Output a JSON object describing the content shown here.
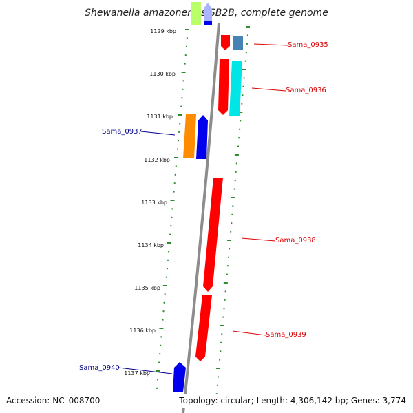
{
  "title": "Shewanella amazonensis SB2B, complete genome",
  "accession": "Accession: NC_008700",
  "topology": "Topology: circular; Length: 4,306,142 bp; Genes: 3,774",
  "tick_labels": [
    "1129 kbp",
    "1130 kbp",
    "1131 kbp",
    "1132 kbp",
    "1133 kbp",
    "1134 kbp",
    "1135 kbp",
    "1136 kbp",
    "1137 kbp"
  ],
  "genes": [
    {
      "id": "Sama_0935",
      "color": "#dd0000"
    },
    {
      "id": "Sama_0936",
      "color": "#dd0000"
    },
    {
      "id": "Sama_0937",
      "color": "#00008b"
    },
    {
      "id": "Sama_0938",
      "color": "#dd0000"
    },
    {
      "id": "Sama_0939",
      "color": "#dd0000"
    },
    {
      "id": "Sama_0940",
      "color": "#00008b"
    }
  ],
  "colors": {
    "red": "#ff0000",
    "blue": "#0000ee",
    "orange": "#ff8c00",
    "cyan": "#00e5e5",
    "steelblue": "#4682b4",
    "lightblue": "#aab4ff",
    "green": "#7ccd00",
    "backbone": "#8c8c8c",
    "dots": "#2e8b2e"
  }
}
